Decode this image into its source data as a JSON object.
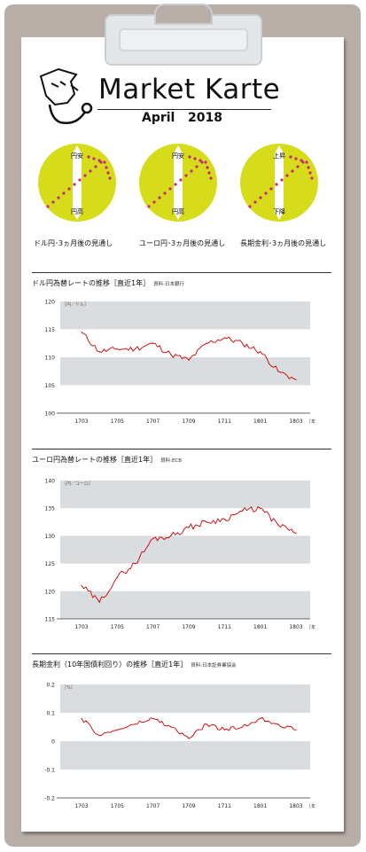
{
  "header": {
    "title": "Market Karte",
    "subtitle": "April   2018"
  },
  "outlooks": [
    {
      "top_label": "円安",
      "bottom_label": "円高",
      "caption": "ドル円･3ヵ月後の見通し",
      "color": "#d6dc1a",
      "logo_icon": "outlook-arrow-up"
    },
    {
      "top_label": "円安",
      "bottom_label": "円高",
      "caption": "ユーロ円･3ヵ月後の見通し",
      "color": "#d6dc1a",
      "logo_icon": "outlook-arrow-up"
    },
    {
      "top_label": "上昇",
      "bottom_label": "下降",
      "caption": "長期金利･3ヵ月後の見通し",
      "color": "#d6dc1a",
      "logo_icon": "outlook-arrow-up"
    }
  ],
  "chart_data": [
    {
      "type": "line",
      "title": "ドル円為替レートの推移［直近1年］",
      "source": "資料:日本銀行",
      "unit_label": "［円／ドル］",
      "x_unit_label": "［年月］",
      "xticks": [
        "1703",
        "1705",
        "1707",
        "1709",
        "1711",
        "1801",
        "1803"
      ],
      "yticks": [
        "120",
        "115",
        "110",
        "105",
        "100"
      ],
      "ylim": [
        100,
        120
      ],
      "color": "#cc0000",
      "x": [
        "1703",
        "1704",
        "1705",
        "1706",
        "1707",
        "1708",
        "1709",
        "1710",
        "1711",
        "1712",
        "1801",
        "1802",
        "1803"
      ],
      "series": [
        {
          "values": [
            114.5,
            111.0,
            111.5,
            111.5,
            112.5,
            110.5,
            109.5,
            112.5,
            113.5,
            112.5,
            111.0,
            107.5,
            106.0
          ]
        }
      ]
    },
    {
      "type": "line",
      "title": "ユーロ円為替レートの推移［直近1年］",
      "source": "資料:ECB",
      "unit_label": "［円／ユーロ］",
      "x_unit_label": "［年月］",
      "xticks": [
        "1703",
        "1705",
        "1707",
        "1709",
        "1711",
        "1801",
        "1803"
      ],
      "yticks": [
        "140",
        "135",
        "130",
        "125",
        "120",
        "115"
      ],
      "ylim": [
        115,
        140
      ],
      "color": "#cc0000",
      "x": [
        "1703",
        "1704",
        "1705",
        "1706",
        "1707",
        "1708",
        "1709",
        "1710",
        "1711",
        "1712",
        "1801",
        "1802",
        "1803"
      ],
      "series": [
        {
          "values": [
            121.0,
            118.0,
            122.5,
            125.0,
            129.5,
            130.0,
            131.5,
            132.5,
            133.0,
            134.5,
            135.0,
            132.0,
            130.5
          ]
        }
      ]
    },
    {
      "type": "line",
      "title": "長期金利（10年国債利回り）の推移［直近1年］",
      "source": "資料:日本証券業協会",
      "unit_label": "［%］",
      "x_unit_label": "［年月］",
      "xticks": [
        "1703",
        "1705",
        "1707",
        "1709",
        "1711",
        "1801",
        "1803"
      ],
      "yticks": [
        "0.2",
        "0.1",
        "0",
        "-0.1",
        "-0.2"
      ],
      "ylim": [
        -0.2,
        0.2
      ],
      "color": "#cc0000",
      "x": [
        "1703",
        "1704",
        "1705",
        "1706",
        "1707",
        "1708",
        "1709",
        "1710",
        "1711",
        "1712",
        "1801",
        "1802",
        "1803"
      ],
      "series": [
        {
          "values": [
            0.08,
            0.02,
            0.04,
            0.06,
            0.08,
            0.05,
            0.01,
            0.06,
            0.04,
            0.05,
            0.08,
            0.06,
            0.04
          ]
        }
      ]
    }
  ]
}
